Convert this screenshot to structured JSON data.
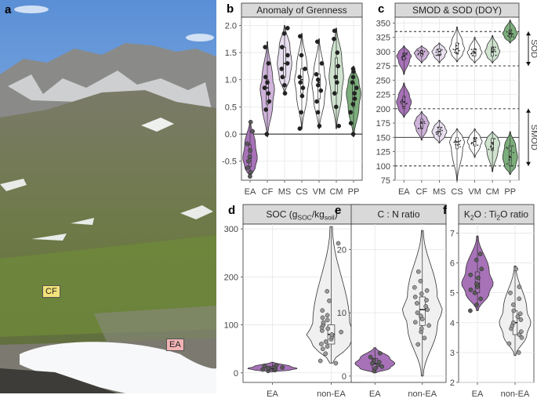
{
  "panel_a": {
    "label": "a",
    "tags": [
      {
        "text": "CF",
        "color": "#f3e27a"
      },
      {
        "text": "EA",
        "color": "#f2b3b3"
      }
    ]
  },
  "palette": {
    "EA": "#a772b8",
    "CF": "#cfb3da",
    "MS": "#e8dff0",
    "CS": "#ffffff",
    "VM": "#ffffff",
    "CM": "#cfe3cf",
    "PP": "#7cae7c",
    "nonEA": "#f0f0f0",
    "point": "#5a5a5a",
    "nonEApoint": "#9a9a9a"
  },
  "chart_data": [
    {
      "id": "b",
      "type": "violin",
      "panel_label": "b",
      "title": "Anomaly of Grenness",
      "categories": [
        "EA",
        "CF",
        "MS",
        "CS",
        "VM",
        "CM",
        "PP"
      ],
      "yticks": [
        -0.5,
        0.0,
        0.5,
        1.0,
        1.5,
        2.0
      ],
      "ylim": [
        -0.85,
        2.15
      ],
      "reference_line": 0.0,
      "series": [
        {
          "name": "EA",
          "min": -0.8,
          "q1": -0.6,
          "median": -0.45,
          "q3": -0.2,
          "max": 0.25,
          "points": [
            -0.78,
            -0.7,
            -0.62,
            -0.5,
            -0.42,
            -0.3,
            -0.18,
            0.05,
            0.22
          ]
        },
        {
          "name": "CF",
          "min": -0.05,
          "q1": 0.55,
          "median": 0.85,
          "q3": 1.0,
          "max": 1.7,
          "points": [
            0.0,
            0.45,
            0.6,
            0.75,
            0.85,
            0.95,
            1.05,
            1.3,
            1.6
          ]
        },
        {
          "name": "MS",
          "min": 0.75,
          "q1": 1.05,
          "median": 1.3,
          "q3": 1.6,
          "max": 2.0,
          "points": [
            0.75,
            0.9,
            1.05,
            1.2,
            1.3,
            1.45,
            1.6,
            1.85,
            1.95
          ]
        },
        {
          "name": "CS",
          "min": 0.1,
          "q1": 0.75,
          "median": 1.0,
          "q3": 1.2,
          "max": 1.85,
          "points": [
            0.1,
            0.4,
            0.7,
            0.85,
            0.95,
            1.05,
            1.2,
            1.45,
            1.8
          ]
        },
        {
          "name": "VM",
          "min": 0.1,
          "q1": 0.65,
          "median": 0.95,
          "q3": 1.1,
          "max": 1.75,
          "points": [
            0.15,
            0.4,
            0.6,
            0.8,
            0.9,
            1.0,
            1.1,
            1.3,
            1.7
          ]
        },
        {
          "name": "CM",
          "min": 0.1,
          "q1": 0.75,
          "median": 1.05,
          "q3": 1.4,
          "max": 1.95,
          "points": [
            0.15,
            0.5,
            0.75,
            0.95,
            1.05,
            1.25,
            1.5,
            1.75,
            1.9
          ]
        },
        {
          "name": "PP",
          "min": -0.05,
          "q1": 0.5,
          "median": 0.75,
          "q3": 0.95,
          "max": 1.25,
          "points": [
            0.0,
            0.2,
            0.4,
            0.55,
            0.65,
            0.75,
            0.85,
            0.95,
            1.05,
            1.15,
            1.2
          ]
        }
      ]
    },
    {
      "id": "c",
      "type": "violin",
      "panel_label": "c",
      "title": "SMOD & SOD (DOY)",
      "categories": [
        "EA",
        "CF",
        "MS",
        "CS",
        "VM",
        "CM",
        "PP"
      ],
      "yticks": [
        75,
        100,
        125,
        150,
        175,
        200,
        225,
        250,
        275,
        300,
        325,
        350
      ],
      "ylim": [
        75,
        360
      ],
      "reference_lines": [
        {
          "y": 150,
          "style": "solid"
        },
        {
          "y": 100,
          "style": "dashed"
        },
        {
          "y": 200,
          "style": "dashed"
        },
        {
          "y": 275,
          "style": "dashed"
        },
        {
          "y": 335,
          "style": "dashed"
        }
      ],
      "range_labels": [
        {
          "text": "SOD",
          "from": 275,
          "to": 335
        },
        {
          "text": "SMOD",
          "from": 100,
          "to": 200
        }
      ],
      "series_SOD": [
        {
          "name": "EA",
          "min": 260,
          "q1": 285,
          "median": 292,
          "q3": 298,
          "max": 310
        },
        {
          "name": "CF",
          "min": 280,
          "q1": 292,
          "median": 297,
          "q3": 302,
          "max": 310
        },
        {
          "name": "MS",
          "min": 280,
          "q1": 293,
          "median": 300,
          "q3": 305,
          "max": 315
        },
        {
          "name": "CS",
          "min": 282,
          "q1": 296,
          "median": 305,
          "q3": 315,
          "max": 343
        },
        {
          "name": "VM",
          "min": 280,
          "q1": 292,
          "median": 298,
          "q3": 305,
          "max": 325
        },
        {
          "name": "CM",
          "min": 280,
          "q1": 292,
          "median": 300,
          "q3": 308,
          "max": 328
        },
        {
          "name": "PP",
          "min": 315,
          "q1": 325,
          "median": 332,
          "q3": 338,
          "max": 355
        }
      ],
      "series_SMOD": [
        {
          "name": "EA",
          "min": 185,
          "q1": 200,
          "median": 212,
          "q3": 222,
          "max": 245
        },
        {
          "name": "CF",
          "min": 145,
          "q1": 165,
          "median": 175,
          "q3": 182,
          "max": 195
        },
        {
          "name": "MS",
          "min": 140,
          "q1": 152,
          "median": 160,
          "q3": 168,
          "max": 180
        },
        {
          "name": "CS",
          "min": 75,
          "q1": 130,
          "median": 142,
          "q3": 150,
          "max": 165
        },
        {
          "name": "VM",
          "min": 115,
          "q1": 135,
          "median": 143,
          "q3": 150,
          "max": 165
        },
        {
          "name": "CM",
          "min": 90,
          "q1": 127,
          "median": 140,
          "q3": 148,
          "max": 160
        },
        {
          "name": "PP",
          "min": 85,
          "q1": 100,
          "median": 115,
          "q3": 135,
          "max": 160
        }
      ]
    },
    {
      "id": "d",
      "type": "violin",
      "panel_label": "d",
      "title": "SOC (g",
      "title_sub1": "SOC",
      "title_mid": "/kg",
      "title_sub2": "soil",
      "title_end": ")",
      "categories": [
        "EA",
        "non-EA"
      ],
      "yticks": [
        0,
        100,
        200,
        300
      ],
      "ylim": [
        -20,
        310
      ],
      "series": [
        {
          "name": "EA",
          "min": 2,
          "q1": 6,
          "median": 9,
          "q3": 13,
          "max": 22,
          "points": [
            4,
            6,
            7,
            8,
            9,
            10,
            11,
            12,
            14,
            16
          ]
        },
        {
          "name": "non-EA",
          "min": 20,
          "q1": 60,
          "median": 80,
          "q3": 100,
          "max": 305,
          "points": [
            20,
            25,
            40,
            50,
            55,
            60,
            65,
            70,
            75,
            80,
            85,
            88,
            92,
            95,
            100,
            105,
            110,
            115,
            120,
            130,
            150,
            170,
            270
          ]
        }
      ]
    },
    {
      "id": "e",
      "type": "violin",
      "panel_label": "e",
      "title": "C : N ratio",
      "categories": [
        "EA",
        "non-EA"
      ],
      "yticks": [
        0,
        10,
        20
      ],
      "ylim": [
        -1,
        24
      ],
      "series": [
        {
          "name": "EA",
          "min": 0.5,
          "q1": 1.2,
          "median": 2,
          "q3": 2.8,
          "max": 4.5,
          "points": [
            0.8,
            1.2,
            1.5,
            1.8,
            2,
            2.2,
            2.5,
            3,
            3.6
          ]
        },
        {
          "name": "non-EA",
          "min": 0,
          "q1": 8,
          "median": 10.5,
          "q3": 12.5,
          "max": 23,
          "points": [
            5,
            6,
            7,
            7.5,
            8,
            8.5,
            9,
            9.5,
            10,
            10.5,
            11,
            11.5,
            12,
            12.5,
            13,
            13.5,
            14,
            15,
            16.5
          ]
        }
      ]
    },
    {
      "id": "f",
      "type": "violin",
      "panel_label": "f",
      "title": "K",
      "title_sub1": "2",
      "title_mid": "O : Ti",
      "title_sub2": "2",
      "title_end": "O ratio",
      "categories": [
        "EA",
        "non-EA"
      ],
      "yticks": [
        2,
        3,
        4,
        5,
        6,
        7
      ],
      "ylim": [
        2,
        7.3
      ],
      "series": [
        {
          "name": "EA",
          "min": 4.4,
          "q1": 5.0,
          "median": 5.3,
          "q3": 5.7,
          "max": 6.9,
          "points": [
            4.4,
            4.6,
            4.8,
            5.0,
            5.1,
            5.2,
            5.3,
            5.5,
            5.6,
            5.8,
            6.1,
            6.3
          ]
        },
        {
          "name": "non-EA",
          "min": 2.9,
          "q1": 3.6,
          "median": 4.0,
          "q3": 4.4,
          "max": 5.9,
          "points": [
            3.0,
            3.3,
            3.5,
            3.6,
            3.7,
            3.8,
            3.9,
            4.0,
            4.1,
            4.2,
            4.3,
            4.4,
            4.6,
            4.8,
            5.0,
            5.2,
            5.8
          ]
        }
      ]
    }
  ]
}
